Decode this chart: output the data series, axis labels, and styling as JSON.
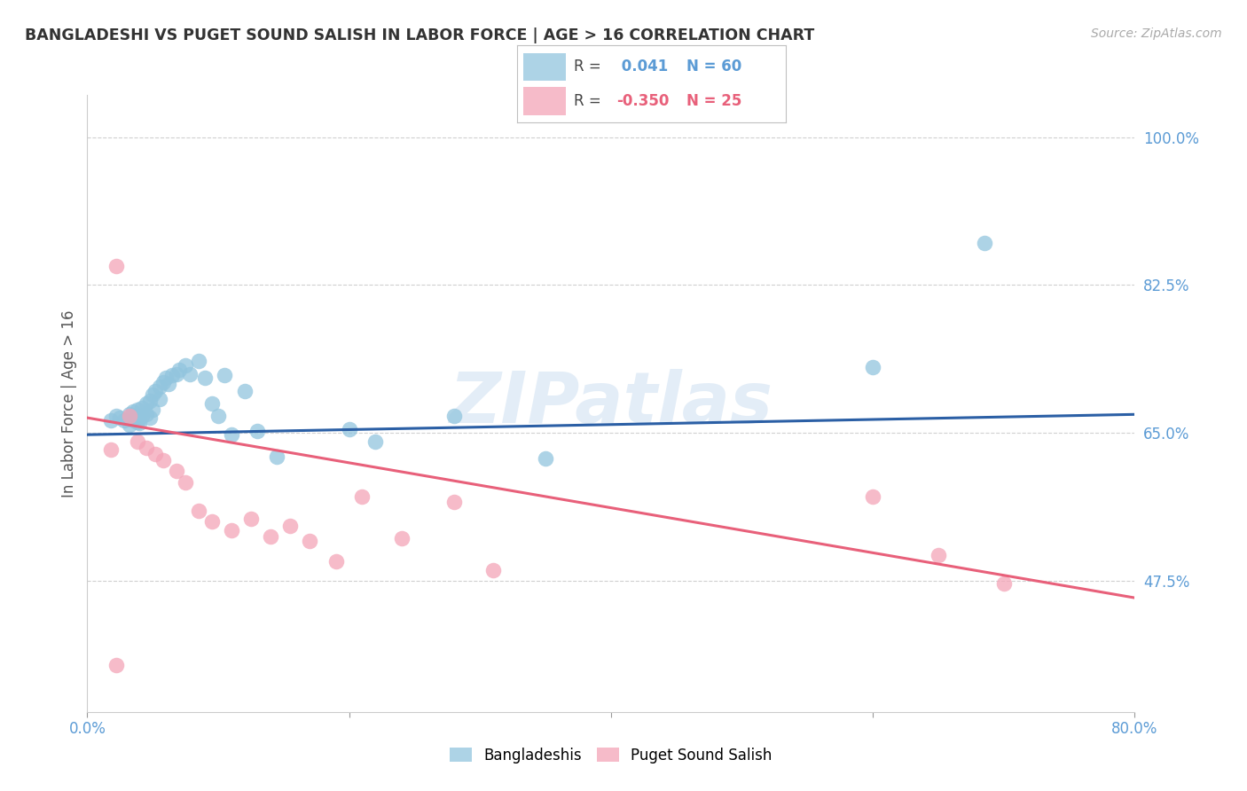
{
  "title": "BANGLADESHI VS PUGET SOUND SALISH IN LABOR FORCE | AGE > 16 CORRELATION CHART",
  "source": "Source: ZipAtlas.com",
  "ylabel": "In Labor Force | Age > 16",
  "ytick_labels": [
    "100.0%",
    "82.5%",
    "65.0%",
    "47.5%"
  ],
  "ytick_values": [
    1.0,
    0.825,
    0.65,
    0.475
  ],
  "xlim": [
    0.0,
    0.8
  ],
  "ylim": [
    0.32,
    1.05
  ],
  "legend_r_blue": " 0.041",
  "legend_n_blue": "60",
  "legend_r_pink": "-0.350",
  "legend_n_pink": "25",
  "blue_color": "#92c5de",
  "pink_color": "#f4a5b8",
  "line_blue_color": "#2b5fa5",
  "line_pink_color": "#e8607a",
  "watermark": "ZIPatlas",
  "blue_line_x0": 0.0,
  "blue_line_x1": 0.8,
  "blue_line_y0": 0.648,
  "blue_line_y1": 0.672,
  "pink_line_x0": 0.0,
  "pink_line_x1": 0.8,
  "pink_line_y0": 0.668,
  "pink_line_y1": 0.455,
  "blue_scatter_x": [
    0.018,
    0.022,
    0.025,
    0.028,
    0.032,
    0.032,
    0.035,
    0.035,
    0.038,
    0.038,
    0.04,
    0.04,
    0.042,
    0.042,
    0.045,
    0.045,
    0.048,
    0.048,
    0.05,
    0.05,
    0.052,
    0.055,
    0.055,
    0.058,
    0.06,
    0.062,
    0.065,
    0.068,
    0.07,
    0.075,
    0.078,
    0.085,
    0.09,
    0.095,
    0.1,
    0.105,
    0.11,
    0.12,
    0.13,
    0.145,
    0.2,
    0.22,
    0.28,
    0.35,
    0.6,
    0.685
  ],
  "blue_scatter_y": [
    0.665,
    0.67,
    0.668,
    0.665,
    0.672,
    0.66,
    0.665,
    0.675,
    0.678,
    0.663,
    0.668,
    0.662,
    0.68,
    0.67,
    0.685,
    0.672,
    0.688,
    0.668,
    0.695,
    0.678,
    0.7,
    0.705,
    0.69,
    0.71,
    0.715,
    0.708,
    0.718,
    0.72,
    0.725,
    0.73,
    0.72,
    0.735,
    0.715,
    0.685,
    0.67,
    0.718,
    0.648,
    0.7,
    0.652,
    0.622,
    0.655,
    0.64,
    0.67,
    0.62,
    0.728,
    0.875
  ],
  "pink_scatter_x": [
    0.018,
    0.022,
    0.032,
    0.038,
    0.045,
    0.052,
    0.058,
    0.068,
    0.075,
    0.085,
    0.095,
    0.11,
    0.125,
    0.14,
    0.155,
    0.17,
    0.19,
    0.21,
    0.24,
    0.28,
    0.31,
    0.6,
    0.65,
    0.7,
    0.022
  ],
  "pink_scatter_y": [
    0.63,
    0.848,
    0.67,
    0.64,
    0.632,
    0.625,
    0.618,
    0.605,
    0.592,
    0.558,
    0.545,
    0.535,
    0.548,
    0.528,
    0.54,
    0.522,
    0.498,
    0.575,
    0.525,
    0.568,
    0.488,
    0.575,
    0.505,
    0.472,
    0.375
  ],
  "grid_color": "#d0d0d0",
  "background_color": "#ffffff"
}
